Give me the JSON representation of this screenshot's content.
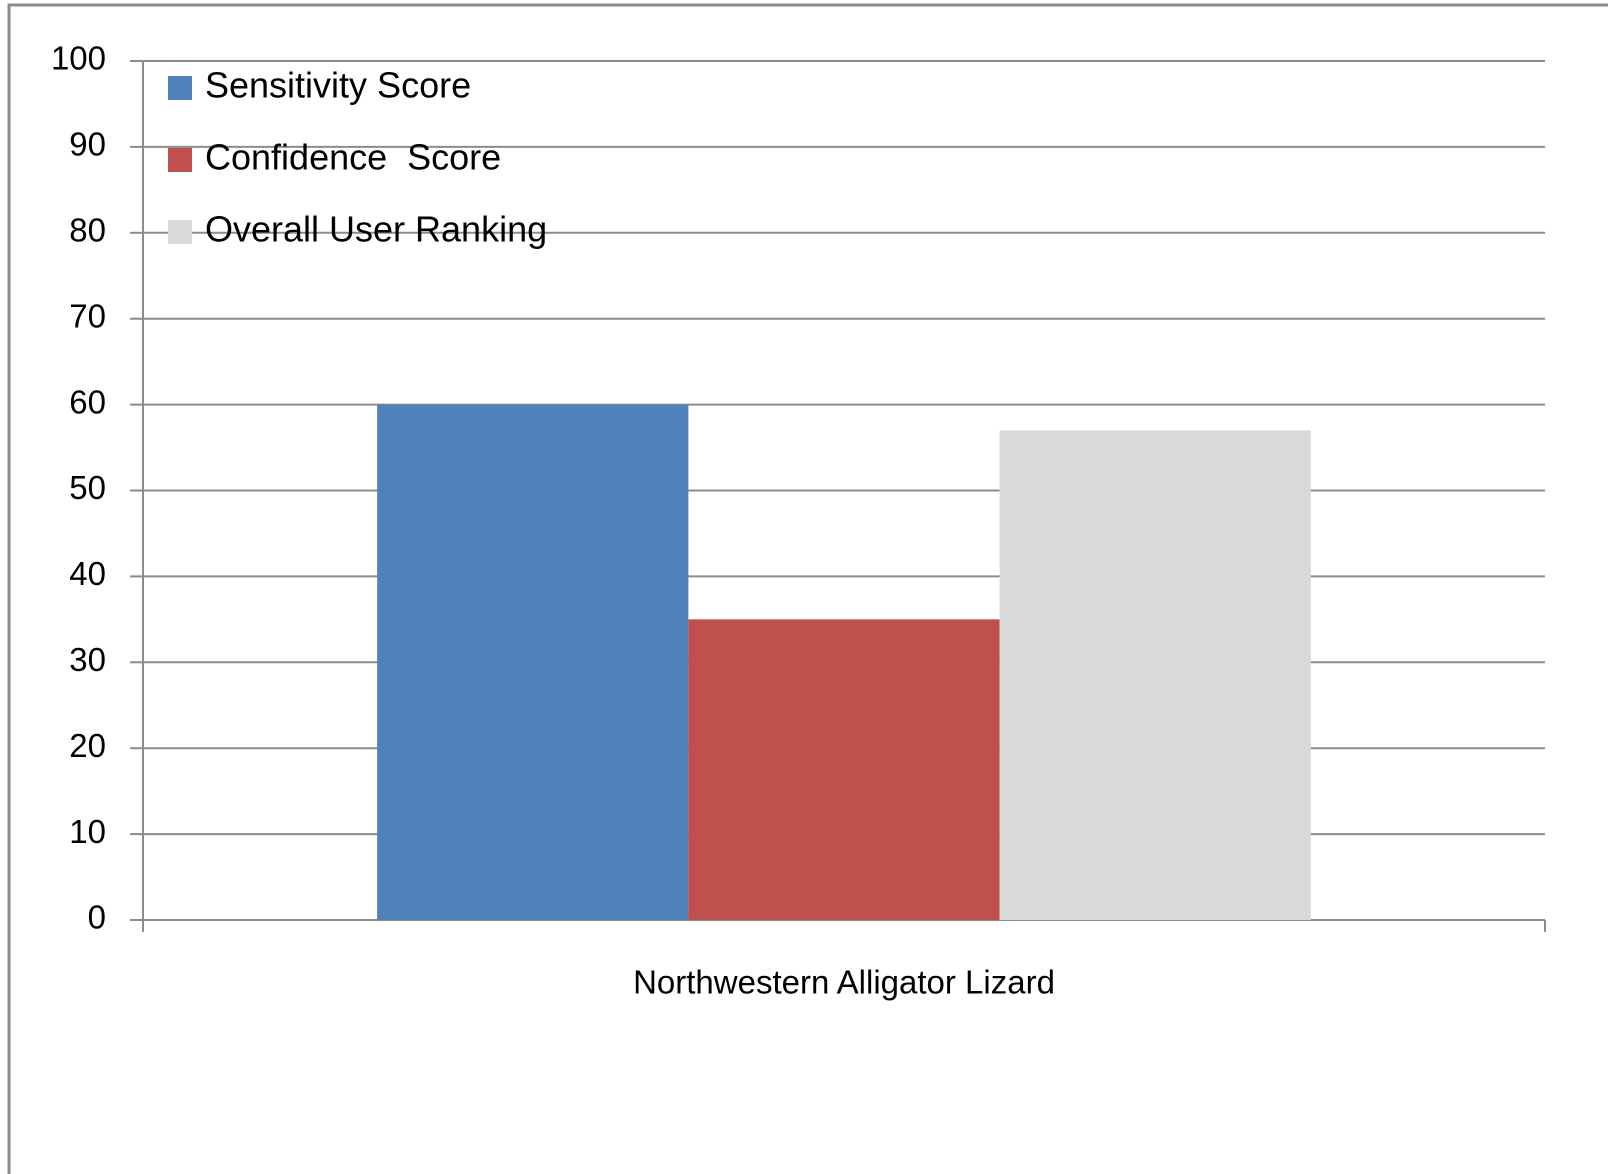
{
  "chart_data": {
    "type": "bar",
    "categories": [
      "Northwestern Alligator Lizard"
    ],
    "series": [
      {
        "name": "Sensitivity Score",
        "color": "#4f81bd",
        "values": [
          60
        ]
      },
      {
        "name": "Confidence  Score",
        "color": "#c0504d",
        "values": [
          35
        ]
      },
      {
        "name": "Overall User Ranking",
        "color": "#d9d9d9",
        "values": [
          57
        ]
      }
    ],
    "ylim": [
      0,
      100
    ],
    "yticks": [
      0,
      10,
      20,
      30,
      40,
      50,
      60,
      70,
      80,
      90,
      100
    ],
    "grid": true,
    "legend": "upper left"
  }
}
